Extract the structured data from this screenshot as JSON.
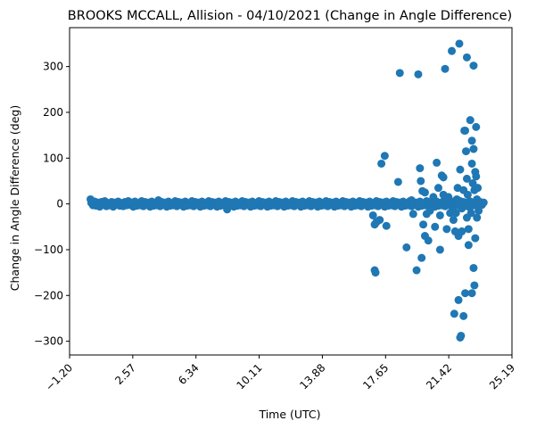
{
  "chart_data": {
    "type": "scatter",
    "title": "BROOKS MCCALL, Allision - 04/10/2021 (Change in Angle Difference)",
    "xlabel": "Time (UTC)",
    "ylabel": "Change in Angle Difference (deg)",
    "xlim": [
      -1.2,
      25.19
    ],
    "ylim": [
      -330,
      385
    ],
    "xticks": [
      -1.2,
      2.57,
      6.34,
      10.11,
      13.88,
      17.65,
      21.42,
      25.19
    ],
    "xtick_labels": [
      "−1.20",
      "2.57",
      "6.34",
      "10.11",
      "13.88",
      "17.65",
      "21.42",
      "25.19"
    ],
    "yticks": [
      -300,
      -200,
      -100,
      0,
      100,
      200,
      300
    ],
    "ytick_labels": [
      "−300",
      "−200",
      "−100",
      "0",
      "100",
      "200",
      "300"
    ],
    "marker_color": "#1f77b4",
    "grid": false,
    "series": [
      {
        "points": [
          [
            0.05,
            10
          ],
          [
            0.1,
            2
          ],
          [
            0.2,
            -3
          ],
          [
            0.3,
            5
          ],
          [
            0.4,
            -4
          ],
          [
            0.5,
            3
          ],
          [
            0.6,
            -6
          ],
          [
            0.7,
            4
          ],
          [
            0.8,
            -2
          ],
          [
            0.9,
            6
          ],
          [
            1.0,
            -5
          ],
          [
            1.1,
            2
          ],
          [
            1.2,
            -3
          ],
          [
            1.3,
            4
          ],
          [
            1.4,
            -6
          ],
          [
            1.5,
            3
          ],
          [
            1.6,
            -2
          ],
          [
            1.7,
            5
          ],
          [
            1.8,
            -4
          ],
          [
            1.9,
            2
          ],
          [
            2.0,
            -5
          ],
          [
            2.1,
            4
          ],
          [
            2.2,
            -3
          ],
          [
            2.3,
            6
          ],
          [
            2.4,
            -2
          ],
          [
            2.5,
            3
          ],
          [
            2.6,
            -6
          ],
          [
            2.7,
            5
          ],
          [
            2.8,
            -4
          ],
          [
            2.9,
            2
          ],
          [
            3.0,
            -3
          ],
          [
            3.1,
            6
          ],
          [
            3.2,
            -5
          ],
          [
            3.3,
            4
          ],
          [
            3.4,
            -2
          ],
          [
            3.5,
            3
          ],
          [
            3.6,
            -6
          ],
          [
            3.7,
            5
          ],
          [
            3.8,
            -4
          ],
          [
            3.9,
            2
          ],
          [
            4.0,
            -3
          ],
          [
            4.1,
            8
          ],
          [
            4.2,
            -5
          ],
          [
            4.3,
            4
          ],
          [
            4.4,
            -2
          ],
          [
            4.5,
            3
          ],
          [
            4.6,
            -6
          ],
          [
            4.7,
            5
          ],
          [
            4.8,
            -4
          ],
          [
            4.9,
            2
          ],
          [
            5.0,
            -3
          ],
          [
            5.1,
            6
          ],
          [
            5.2,
            -5
          ],
          [
            5.3,
            4
          ],
          [
            5.4,
            -2
          ],
          [
            5.5,
            3
          ],
          [
            5.6,
            -6
          ],
          [
            5.7,
            5
          ],
          [
            5.8,
            -4
          ],
          [
            5.9,
            2
          ],
          [
            6.0,
            -3
          ],
          [
            6.1,
            6
          ],
          [
            6.2,
            -5
          ],
          [
            6.3,
            4
          ],
          [
            6.4,
            -2
          ],
          [
            6.5,
            3
          ],
          [
            6.6,
            -6
          ],
          [
            6.7,
            5
          ],
          [
            6.8,
            -4
          ],
          [
            6.9,
            2
          ],
          [
            7.0,
            -3
          ],
          [
            7.1,
            6
          ],
          [
            7.2,
            -5
          ],
          [
            7.3,
            4
          ],
          [
            7.4,
            -2
          ],
          [
            7.5,
            3
          ],
          [
            7.6,
            -6
          ],
          [
            7.7,
            5
          ],
          [
            7.8,
            -4
          ],
          [
            7.9,
            2
          ],
          [
            8.0,
            -3
          ],
          [
            8.1,
            6
          ],
          [
            8.2,
            -12
          ],
          [
            8.3,
            4
          ],
          [
            8.4,
            -2
          ],
          [
            8.5,
            3
          ],
          [
            8.6,
            -6
          ],
          [
            8.7,
            5
          ],
          [
            8.8,
            -4
          ],
          [
            8.9,
            2
          ],
          [
            9.0,
            -3
          ],
          [
            9.1,
            6
          ],
          [
            9.2,
            -5
          ],
          [
            9.3,
            4
          ],
          [
            9.4,
            -2
          ],
          [
            9.5,
            3
          ],
          [
            9.6,
            -6
          ],
          [
            9.7,
            5
          ],
          [
            9.8,
            -4
          ],
          [
            9.9,
            2
          ],
          [
            10.0,
            -3
          ],
          [
            10.1,
            6
          ],
          [
            10.2,
            -5
          ],
          [
            10.3,
            4
          ],
          [
            10.4,
            -2
          ],
          [
            10.5,
            3
          ],
          [
            10.6,
            -6
          ],
          [
            10.7,
            5
          ],
          [
            10.8,
            -4
          ],
          [
            10.9,
            2
          ],
          [
            11.0,
            -3
          ],
          [
            11.1,
            6
          ],
          [
            11.2,
            -5
          ],
          [
            11.3,
            4
          ],
          [
            11.4,
            -2
          ],
          [
            11.5,
            3
          ],
          [
            11.6,
            -6
          ],
          [
            11.7,
            5
          ],
          [
            11.8,
            -4
          ],
          [
            11.9,
            2
          ],
          [
            12.0,
            -3
          ],
          [
            12.1,
            6
          ],
          [
            12.2,
            -5
          ],
          [
            12.3,
            4
          ],
          [
            12.4,
            -2
          ],
          [
            12.5,
            3
          ],
          [
            12.6,
            -6
          ],
          [
            12.7,
            5
          ],
          [
            12.8,
            -4
          ],
          [
            12.9,
            2
          ],
          [
            13.0,
            -3
          ],
          [
            13.1,
            6
          ],
          [
            13.2,
            -5
          ],
          [
            13.3,
            4
          ],
          [
            13.4,
            -2
          ],
          [
            13.5,
            3
          ],
          [
            13.6,
            -6
          ],
          [
            13.7,
            5
          ],
          [
            13.8,
            -4
          ],
          [
            13.9,
            2
          ],
          [
            14.0,
            -3
          ],
          [
            14.1,
            6
          ],
          [
            14.2,
            -5
          ],
          [
            14.3,
            4
          ],
          [
            14.4,
            -2
          ],
          [
            14.5,
            3
          ],
          [
            14.6,
            -6
          ],
          [
            14.7,
            5
          ],
          [
            14.8,
            -4
          ],
          [
            14.9,
            2
          ],
          [
            15.0,
            -3
          ],
          [
            15.1,
            6
          ],
          [
            15.2,
            -5
          ],
          [
            15.3,
            4
          ],
          [
            15.4,
            -2
          ],
          [
            15.5,
            3
          ],
          [
            15.6,
            -6
          ],
          [
            15.7,
            5
          ],
          [
            15.8,
            -4
          ],
          [
            15.9,
            2
          ],
          [
            16.0,
            -3
          ],
          [
            16.1,
            6
          ],
          [
            16.2,
            -5
          ],
          [
            16.3,
            4
          ],
          [
            16.4,
            -2
          ],
          [
            16.5,
            3
          ],
          [
            16.6,
            -6
          ],
          [
            16.7,
            5
          ],
          [
            16.8,
            -4
          ],
          [
            16.9,
            2
          ],
          [
            17.0,
            -3
          ],
          [
            17.1,
            6
          ],
          [
            17.2,
            -5
          ],
          [
            17.3,
            4
          ],
          [
            17.4,
            -2
          ],
          [
            17.5,
            3
          ],
          [
            17.6,
            -6
          ],
          [
            17.7,
            5
          ],
          [
            17.8,
            -4
          ],
          [
            17.9,
            2
          ],
          [
            18.0,
            -3
          ],
          [
            18.1,
            6
          ],
          [
            18.2,
            -5
          ],
          [
            18.3,
            4
          ],
          [
            18.4,
            -2
          ],
          [
            18.5,
            3
          ],
          [
            18.6,
            -6
          ],
          [
            18.7,
            5
          ],
          [
            18.8,
            -4
          ],
          [
            18.9,
            2
          ],
          [
            19.0,
            -3
          ],
          [
            19.1,
            6
          ],
          [
            19.2,
            -5
          ],
          [
            19.3,
            4
          ],
          [
            19.4,
            -2
          ],
          [
            19.5,
            3
          ],
          [
            19.6,
            -6
          ],
          [
            19.7,
            5
          ],
          [
            19.8,
            -4
          ],
          [
            19.9,
            2
          ],
          [
            20.0,
            -3
          ],
          [
            20.1,
            6
          ],
          [
            20.2,
            -5
          ],
          [
            20.3,
            4
          ],
          [
            20.4,
            -2
          ],
          [
            20.5,
            3
          ],
          [
            20.6,
            -6
          ],
          [
            20.7,
            5
          ],
          [
            20.8,
            -4
          ],
          [
            20.9,
            2
          ],
          [
            21.0,
            -3
          ],
          [
            21.1,
            6
          ],
          [
            21.2,
            -5
          ],
          [
            21.3,
            4
          ],
          [
            21.4,
            -2
          ],
          [
            21.5,
            3
          ],
          [
            21.6,
            -6
          ],
          [
            21.7,
            5
          ],
          [
            21.8,
            -4
          ],
          [
            21.9,
            2
          ],
          [
            22.0,
            -3
          ],
          [
            22.1,
            6
          ],
          [
            22.2,
            -5
          ],
          [
            22.3,
            4
          ],
          [
            22.4,
            -2
          ],
          [
            22.5,
            3
          ],
          [
            22.6,
            -6
          ],
          [
            22.7,
            5
          ],
          [
            22.8,
            -4
          ],
          [
            22.9,
            2
          ],
          [
            23.0,
            -3
          ],
          [
            23.1,
            6
          ],
          [
            23.2,
            -5
          ],
          [
            23.3,
            4
          ],
          [
            23.4,
            -2
          ],
          [
            23.5,
            3
          ],
          [
            16.9,
            -25
          ],
          [
            17.0,
            -45
          ],
          [
            17.1,
            -40
          ],
          [
            17.0,
            -145
          ],
          [
            17.05,
            -150
          ],
          [
            17.4,
            88
          ],
          [
            17.6,
            105
          ],
          [
            17.3,
            -35
          ],
          [
            17.7,
            -48
          ],
          [
            18.4,
            48
          ],
          [
            18.5,
            286
          ],
          [
            18.9,
            -95
          ],
          [
            19.2,
            8
          ],
          [
            19.3,
            -22
          ],
          [
            19.5,
            -145
          ],
          [
            19.6,
            283
          ],
          [
            19.7,
            78
          ],
          [
            19.75,
            50
          ],
          [
            19.8,
            -118
          ],
          [
            19.85,
            28
          ],
          [
            19.9,
            -45
          ],
          [
            20.0,
            25
          ],
          [
            20.0,
            -70
          ],
          [
            20.1,
            -22
          ],
          [
            20.2,
            -80
          ],
          [
            20.3,
            -15
          ],
          [
            20.5,
            15
          ],
          [
            20.6,
            -50
          ],
          [
            20.7,
            90
          ],
          [
            20.8,
            35
          ],
          [
            20.9,
            -25
          ],
          [
            20.9,
            -100
          ],
          [
            21.0,
            62
          ],
          [
            21.1,
            58
          ],
          [
            21.1,
            20
          ],
          [
            21.2,
            295
          ],
          [
            21.3,
            -55
          ],
          [
            21.4,
            15
          ],
          [
            21.5,
            -20
          ],
          [
            21.6,
            334
          ],
          [
            21.7,
            -35
          ],
          [
            21.75,
            -240
          ],
          [
            21.8,
            -60
          ],
          [
            21.85,
            -20
          ],
          [
            21.9,
            10
          ],
          [
            21.95,
            35
          ],
          [
            22.0,
            -70
          ],
          [
            22.0,
            -210
          ],
          [
            22.05,
            350
          ],
          [
            22.1,
            -292
          ],
          [
            22.15,
            -288
          ],
          [
            22.1,
            75
          ],
          [
            22.2,
            -10
          ],
          [
            22.2,
            -60
          ],
          [
            22.3,
            30
          ],
          [
            22.3,
            -245
          ],
          [
            22.35,
            160
          ],
          [
            22.4,
            160
          ],
          [
            22.4,
            -195
          ],
          [
            22.45,
            115
          ],
          [
            22.5,
            320
          ],
          [
            22.5,
            55
          ],
          [
            22.5,
            -30
          ],
          [
            22.55,
            20
          ],
          [
            22.6,
            -55
          ],
          [
            22.6,
            -90
          ],
          [
            22.7,
            183
          ],
          [
            22.7,
            5
          ],
          [
            22.75,
            -20
          ],
          [
            22.8,
            138
          ],
          [
            22.8,
            88
          ],
          [
            22.8,
            -195
          ],
          [
            22.85,
            45
          ],
          [
            22.9,
            120
          ],
          [
            22.9,
            -140
          ],
          [
            22.9,
            302
          ],
          [
            22.95,
            30
          ],
          [
            22.95,
            -178
          ],
          [
            23.0,
            70
          ],
          [
            23.0,
            -75
          ],
          [
            23.05,
            168
          ],
          [
            23.05,
            60
          ],
          [
            23.1,
            10
          ],
          [
            23.1,
            -30
          ],
          [
            23.15,
            35
          ],
          [
            23.2,
            -15
          ]
        ]
      }
    ]
  }
}
